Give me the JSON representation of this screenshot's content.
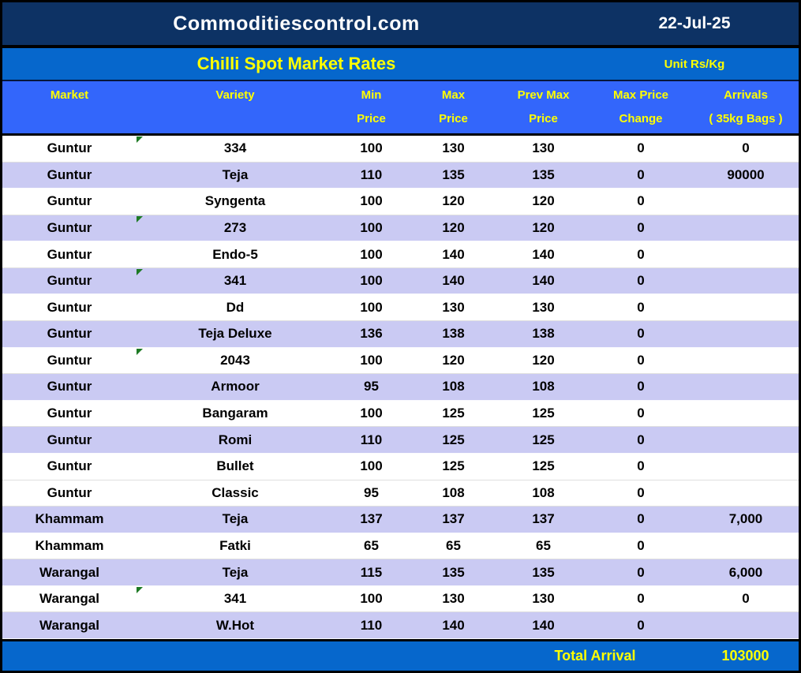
{
  "topbar": {
    "site": "Commoditiescontrol.com",
    "date": "22-Jul-25"
  },
  "titlebar": {
    "title": "Chilli Spot Market Rates",
    "unit": "Unit Rs/Kg"
  },
  "columns": [
    {
      "line1": "Market",
      "line2": ""
    },
    {
      "line1": "Variety",
      "line2": ""
    },
    {
      "line1": "Min",
      "line2": "Price"
    },
    {
      "line1": "Max",
      "line2": "Price"
    },
    {
      "line1": "Prev Max",
      "line2": "Price"
    },
    {
      "line1": "Max Price",
      "line2": "Change"
    },
    {
      "line1": "Arrivals",
      "line2": "( 35kg Bags )"
    }
  ],
  "rows": [
    {
      "market": "Guntur",
      "variety": "334",
      "min": "100",
      "max": "130",
      "prev_max": "130",
      "change": "0",
      "arrivals": "0",
      "shade": "white",
      "flag": true
    },
    {
      "market": "Guntur",
      "variety": "Teja",
      "min": "110",
      "max": "135",
      "prev_max": "135",
      "change": "0",
      "arrivals": "90000",
      "shade": "lavender",
      "flag": false
    },
    {
      "market": "Guntur",
      "variety": "Syngenta",
      "min": "100",
      "max": "120",
      "prev_max": "120",
      "change": "0",
      "arrivals": "",
      "shade": "white",
      "flag": false
    },
    {
      "market": "Guntur",
      "variety": "273",
      "min": "100",
      "max": "120",
      "prev_max": "120",
      "change": "0",
      "arrivals": "",
      "shade": "lavender",
      "flag": true
    },
    {
      "market": "Guntur",
      "variety": "Endo-5",
      "min": "100",
      "max": "140",
      "prev_max": "140",
      "change": "0",
      "arrivals": "",
      "shade": "white",
      "flag": false
    },
    {
      "market": "Guntur",
      "variety": "341",
      "min": "100",
      "max": "140",
      "prev_max": "140",
      "change": "0",
      "arrivals": "",
      "shade": "lavender",
      "flag": true
    },
    {
      "market": "Guntur",
      "variety": "Dd",
      "min": "100",
      "max": "130",
      "prev_max": "130",
      "change": "0",
      "arrivals": "",
      "shade": "white",
      "flag": false
    },
    {
      "market": "Guntur",
      "variety": "Teja Deluxe",
      "min": "136",
      "max": "138",
      "prev_max": "138",
      "change": "0",
      "arrivals": "",
      "shade": "lavender",
      "flag": false
    },
    {
      "market": "Guntur",
      "variety": "2043",
      "min": "100",
      "max": "120",
      "prev_max": "120",
      "change": "0",
      "arrivals": "",
      "shade": "white",
      "flag": true
    },
    {
      "market": "Guntur",
      "variety": "Armoor",
      "min": "95",
      "max": "108",
      "prev_max": "108",
      "change": "0",
      "arrivals": "",
      "shade": "lavender",
      "flag": false
    },
    {
      "market": "Guntur",
      "variety": "Bangaram",
      "min": "100",
      "max": "125",
      "prev_max": "125",
      "change": "0",
      "arrivals": "",
      "shade": "white",
      "flag": false
    },
    {
      "market": "Guntur",
      "variety": "Romi",
      "min": "110",
      "max": "125",
      "prev_max": "125",
      "change": "0",
      "arrivals": "",
      "shade": "lavender",
      "flag": false
    },
    {
      "market": "Guntur",
      "variety": "Bullet",
      "min": "100",
      "max": "125",
      "prev_max": "125",
      "change": "0",
      "arrivals": "",
      "shade": "white",
      "flag": false
    },
    {
      "market": "Guntur",
      "variety": "Classic",
      "min": "95",
      "max": "108",
      "prev_max": "108",
      "change": "0",
      "arrivals": "",
      "shade": "white",
      "flag": false
    },
    {
      "market": "Khammam",
      "variety": "Teja",
      "min": "137",
      "max": "137",
      "prev_max": "137",
      "change": "0",
      "arrivals": "7,000",
      "shade": "lavender",
      "flag": false
    },
    {
      "market": "Khammam",
      "variety": "Fatki",
      "min": "65",
      "max": "65",
      "prev_max": "65",
      "change": "0",
      "arrivals": "",
      "shade": "white",
      "flag": false
    },
    {
      "market": "Warangal",
      "variety": "Teja",
      "min": "115",
      "max": "135",
      "prev_max": "135",
      "change": "0",
      "arrivals": "6,000",
      "shade": "lavender",
      "flag": false
    },
    {
      "market": "Warangal",
      "variety": "341",
      "min": "100",
      "max": "130",
      "prev_max": "130",
      "change": "0",
      "arrivals": "0",
      "shade": "white",
      "flag": true
    },
    {
      "market": "Warangal",
      "variety": "W.Hot",
      "min": "110",
      "max": "140",
      "prev_max": "140",
      "change": "0",
      "arrivals": "",
      "shade": "lavender",
      "flag": false
    }
  ],
  "footer": {
    "label": "Total Arrival",
    "value": "103000"
  },
  "colors": {
    "topbar_bg": "#0d3264",
    "titlebar_bg": "#0667cc",
    "colheader_bg": "#3366fb",
    "row_alt_bg": "#cacaf3",
    "footer_bg": "#0667cc",
    "accent_text": "#ffff00",
    "flag_green": "#1d7a24"
  }
}
